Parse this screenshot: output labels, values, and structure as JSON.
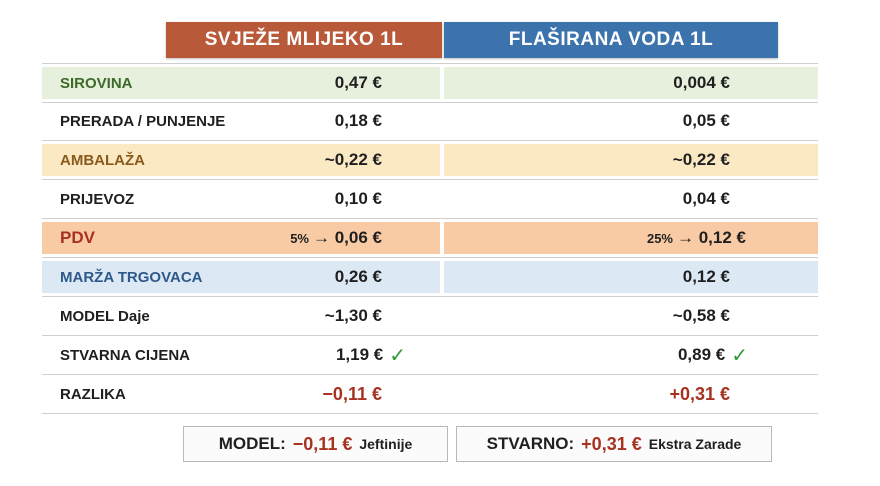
{
  "headers": {
    "col1": "SVJEŽE MLIJEKO 1L",
    "col2": "FLAŠIRANA VODA 1L"
  },
  "rows": [
    {
      "label": "SIROVINA",
      "milk": "0,47 €",
      "water": "0,004 €"
    },
    {
      "label": "PRERADA / PUNJENJE",
      "milk": "0,18 €",
      "water": "0,05 €"
    },
    {
      "label": "AMBALAŽA",
      "milk": "~0,22 €",
      "water": "~0,22 €"
    },
    {
      "label": "PRIJEVOZ",
      "milk": "0,10 €",
      "water": "0,04 €"
    },
    {
      "label": "PDV",
      "milk_pct": "5%",
      "milk": "→ 0,06 €",
      "water_pct": "25%",
      "water": "→ 0,12 €"
    },
    {
      "label": "MARŽA TRGOVACA",
      "milk": "0,26 €",
      "water": "0,12 €"
    },
    {
      "label": "MODEL Daje",
      "milk": "~1,30 €",
      "water": "~0,58 €"
    },
    {
      "label": "STVARNA CIJENA",
      "milk": "1,19 €",
      "water": "0,89 €",
      "icon": "check-icon"
    },
    {
      "label": "RAZLIKA",
      "milk": "−0,11 €",
      "water": "+0,31 €"
    }
  ],
  "summary": {
    "model": {
      "label": "MODEL:",
      "value": "−0,11 €",
      "note": "Jeftinije"
    },
    "real": {
      "label": "STVARNO:",
      "value": "+0,31 €",
      "note": "Ekstra Zarade"
    }
  },
  "colors": {
    "milk_header": "#b85a3a",
    "water_header": "#3c73ad",
    "row_green": "#e6f0dc",
    "row_yellow": "#fbe9c4",
    "row_orange": "#f8cba4",
    "row_blue": "#dce9f5",
    "label_green": "#3c6b2a",
    "label_brown": "#8a5a1c",
    "label_red": "#a8321f",
    "label_blue": "#2d5a8a",
    "check": "#2e9a3c",
    "negative_red": "#a8321f"
  }
}
